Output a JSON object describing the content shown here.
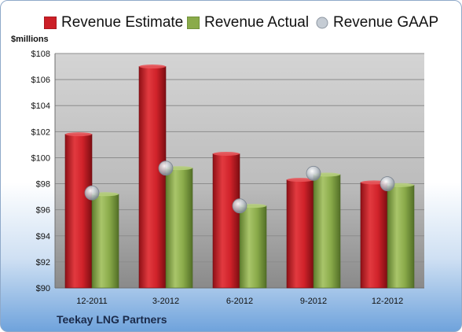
{
  "chart_data": {
    "type": "bar",
    "title": "",
    "ylabel": "$millions",
    "ylim": [
      90,
      108
    ],
    "y_ticks": [
      90,
      92,
      94,
      96,
      98,
      100,
      102,
      104,
      106,
      108
    ],
    "y_tick_labels": [
      "$90",
      "$92",
      "$94",
      "$96",
      "$98",
      "$100",
      "$102",
      "$104",
      "$106",
      "$108"
    ],
    "categories": [
      "12-2011",
      "3-2012",
      "6-2012",
      "9-2012",
      "12-2012"
    ],
    "series": [
      {
        "name": "Revenue Estimate",
        "type": "bar",
        "color": "#cc1f27",
        "values": [
          101.8,
          107.0,
          100.3,
          98.3,
          98.1
        ]
      },
      {
        "name": "Revenue Actual",
        "type": "bar",
        "color": "#8aab4a",
        "values": [
          97.2,
          99.2,
          96.3,
          98.7,
          97.9
        ]
      },
      {
        "name": "Revenue GAAP",
        "type": "marker",
        "color": "#b9c0c9",
        "values": [
          97.3,
          99.2,
          96.3,
          98.8,
          98.0
        ]
      }
    ],
    "legend_position": "top",
    "grid": true,
    "footer": "Teekay LNG Partners"
  }
}
